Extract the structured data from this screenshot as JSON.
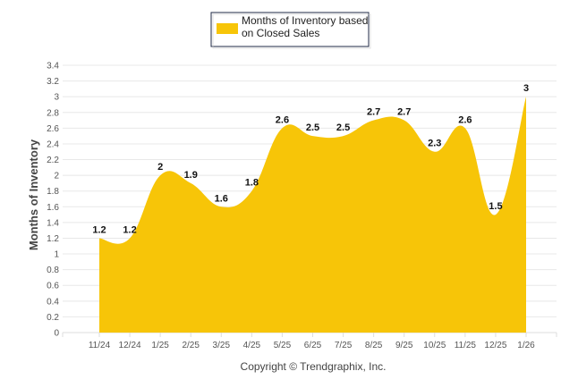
{
  "chart_data": {
    "type": "area",
    "title": "",
    "legend": {
      "label_line1": "Months of Inventory based",
      "label_line2": "on Closed Sales",
      "placement": "top-center"
    },
    "categories": [
      "11/24",
      "12/24",
      "1/25",
      "2/25",
      "3/25",
      "4/25",
      "5/25",
      "6/25",
      "7/25",
      "8/25",
      "9/25",
      "10/25",
      "11/25",
      "12/25",
      "1/26"
    ],
    "series": [
      {
        "name": "Months of Inventory based on Closed Sales",
        "values": [
          1.2,
          1.2,
          2,
          1.9,
          1.6,
          1.8,
          2.6,
          2.5,
          2.5,
          2.7,
          2.7,
          2.3,
          2.6,
          1.5,
          3
        ]
      }
    ],
    "xlabel": "",
    "ylabel": "Months of Inventory",
    "ylim": [
      0,
      3.4
    ],
    "yticks": [
      "0",
      "0.2",
      "0.4",
      "0.6",
      "0.8",
      "1",
      "1.2",
      "1.4",
      "1.6",
      "1.8",
      "2",
      "2.2",
      "2.4",
      "2.6",
      "2.8",
      "3",
      "3.2",
      "3.4"
    ],
    "grid": true,
    "fill_color": "#F7C508",
    "copyright": "Copyright © Trendgraphix, Inc."
  }
}
